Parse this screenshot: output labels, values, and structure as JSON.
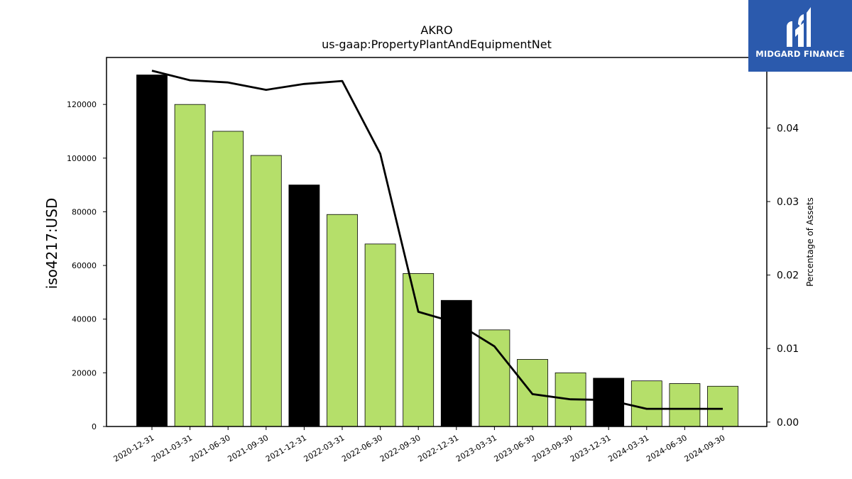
{
  "chart_data": {
    "type": "bar",
    "title": "AKRO",
    "subtitle": "us-gaap:PropertyPlantAndEquipmentNet",
    "ylabel": "iso4217:USD",
    "y2label": "Percentage of Assets",
    "categories": [
      "2020-12-31",
      "2021-03-31",
      "2021-06-30",
      "2021-09-30",
      "2021-12-31",
      "2022-03-31",
      "2022-06-30",
      "2022-09-30",
      "2022-12-31",
      "2023-03-31",
      "2023-06-30",
      "2023-09-30",
      "2023-12-31",
      "2024-03-31",
      "2024-06-30",
      "2024-09-30"
    ],
    "values": [
      131000,
      120000,
      110000,
      101000,
      90000,
      79000,
      68000,
      57000,
      47000,
      36000,
      25000,
      20000,
      18000,
      17000,
      16000,
      15000
    ],
    "bar_colors": [
      "#000000",
      "#b5df6a",
      "#b5df6a",
      "#b5df6a",
      "#000000",
      "#b5df6a",
      "#b5df6a",
      "#b5df6a",
      "#000000",
      "#b5df6a",
      "#b5df6a",
      "#b5df6a",
      "#000000",
      "#b5df6a",
      "#b5df6a",
      "#b5df6a"
    ],
    "line_values": [
      0.0478,
      0.0465,
      0.0462,
      0.0452,
      0.046,
      0.0464,
      0.0365,
      0.015,
      0.0135,
      0.0103,
      0.0038,
      0.0031,
      0.003,
      0.0018,
      0.0018,
      0.0018
    ],
    "ylim": [
      0,
      137500
    ],
    "y_ticks": [
      0,
      20000,
      40000,
      60000,
      80000,
      100000,
      120000
    ],
    "y2lim": [
      -0.0006,
      0.0496
    ],
    "y2_ticks": [
      0.0,
      0.01,
      0.02,
      0.03,
      0.04
    ],
    "y2_tick_labels": [
      "0.00",
      "0.01",
      "0.02",
      "0.03",
      "0.04"
    ],
    "grid": false,
    "line_color": "#000000"
  },
  "logo": {
    "text": "MIDGARD FINANCE",
    "background": "#2b5aad"
  }
}
